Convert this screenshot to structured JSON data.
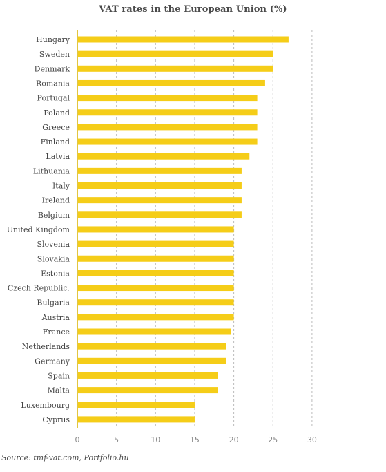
{
  "chart_data": {
    "type": "bar",
    "orientation": "horizontal",
    "title": "VAT rates in the European Union (%)",
    "xlabel": "",
    "ylabel": "",
    "categories": [
      "Hungary",
      "Sweden",
      "Denmark",
      "Romania",
      "Portugal",
      "Poland",
      "Greece",
      "Finland",
      "Latvia",
      "Lithuania",
      "Italy",
      "Ireland",
      "Belgium",
      "United Kingdom",
      "Slovenia",
      "Slovakia",
      "Estonia",
      "Czech Republic.",
      "Bulgaria",
      "Austria",
      "France",
      "Netherlands",
      "Germany",
      "Spain",
      "Malta",
      "Luxembourg",
      "Cyprus"
    ],
    "values": [
      27,
      25,
      25,
      24,
      23,
      23,
      23,
      23,
      22,
      21,
      21,
      21,
      21,
      20,
      20,
      20,
      20,
      20,
      20,
      20,
      19.6,
      19,
      19,
      18,
      18,
      15,
      15
    ],
    "xlim": [
      0,
      30
    ],
    "xticks": [
      0,
      5,
      10,
      15,
      20,
      25,
      30
    ],
    "grid": true,
    "legend": "none",
    "bar_color": "#f5cd18",
    "grid_color": "#bbbbbb",
    "axis_color": "#d9b300"
  },
  "source_text": "Source: tmf-vat.com, Portfolio.hu"
}
